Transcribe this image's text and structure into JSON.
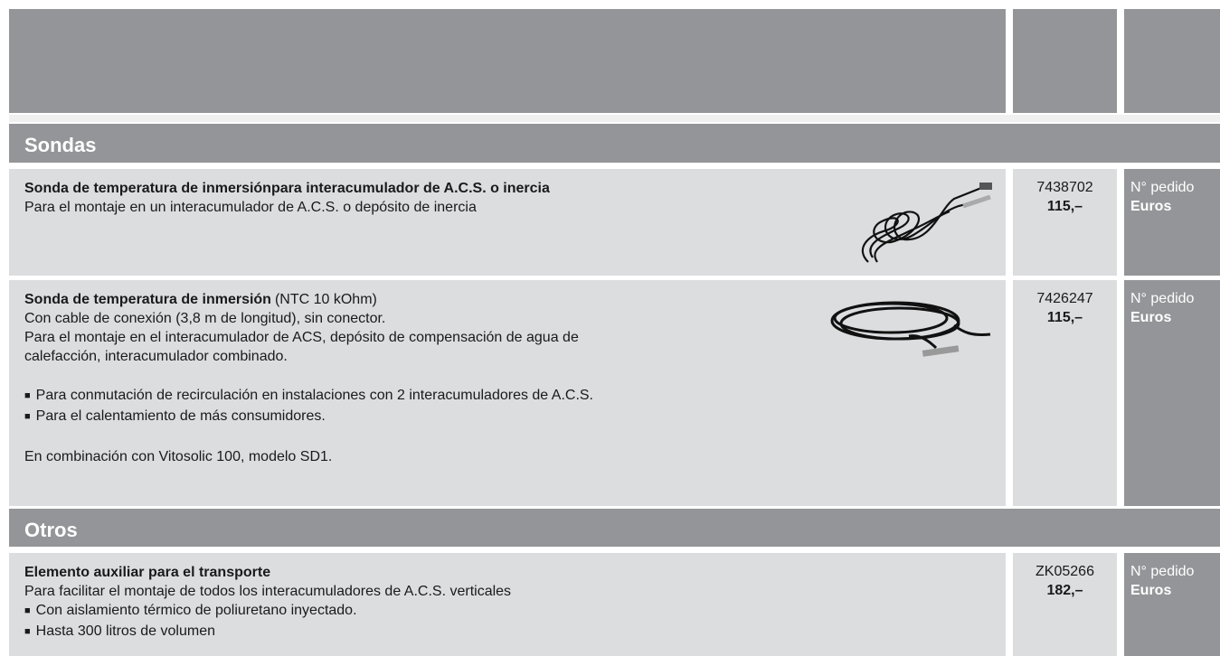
{
  "sections": [
    {
      "title": "Sondas",
      "items": [
        {
          "title": "Sonda de temperatura de inmersiónpara interacumulador de A.C.S. o inercia",
          "description": [
            "Para el montaje en un interacumulador de A.C.S. o depósito de inercia"
          ],
          "order_number": "7438702",
          "price": "115,–",
          "order_label": "N° pedido",
          "price_label": "Euros"
        },
        {
          "title": "Sonda de temperatura de inmersión",
          "title_suffix": "(NTC 10 kOhm)",
          "description": [
            "Con cable de conexión (3,8 m de longitud), sin conector.",
            "Para el montaje en el interacumulador de ACS, depósito de compensación de agua de",
            "calefacción, interacumulador combinado."
          ],
          "bullets": [
            "Para conmutación de recirculación en instalaciones con 2 interacumuladores de A.C.S.",
            "Para el calentamiento de más consumidores."
          ],
          "note": "En combinación con Vitosolic 100, modelo SD1.",
          "order_number": "7426247",
          "price": "115,–",
          "order_label": "N° pedido",
          "price_label": "Euros"
        }
      ]
    },
    {
      "title": "Otros",
      "items": [
        {
          "title": "Elemento auxiliar para el transporte",
          "description": [
            "Para facilitar el montaje de todos los interacumuladores de A.C.S. verticales"
          ],
          "bullets": [
            "Con aislamiento térmico de poliuretano inyectado.",
            "Hasta 300 litros de volumen"
          ],
          "order_number": "ZK05266",
          "price": "182,–",
          "order_label": "N° pedido",
          "price_label": "Euros"
        }
      ]
    }
  ]
}
